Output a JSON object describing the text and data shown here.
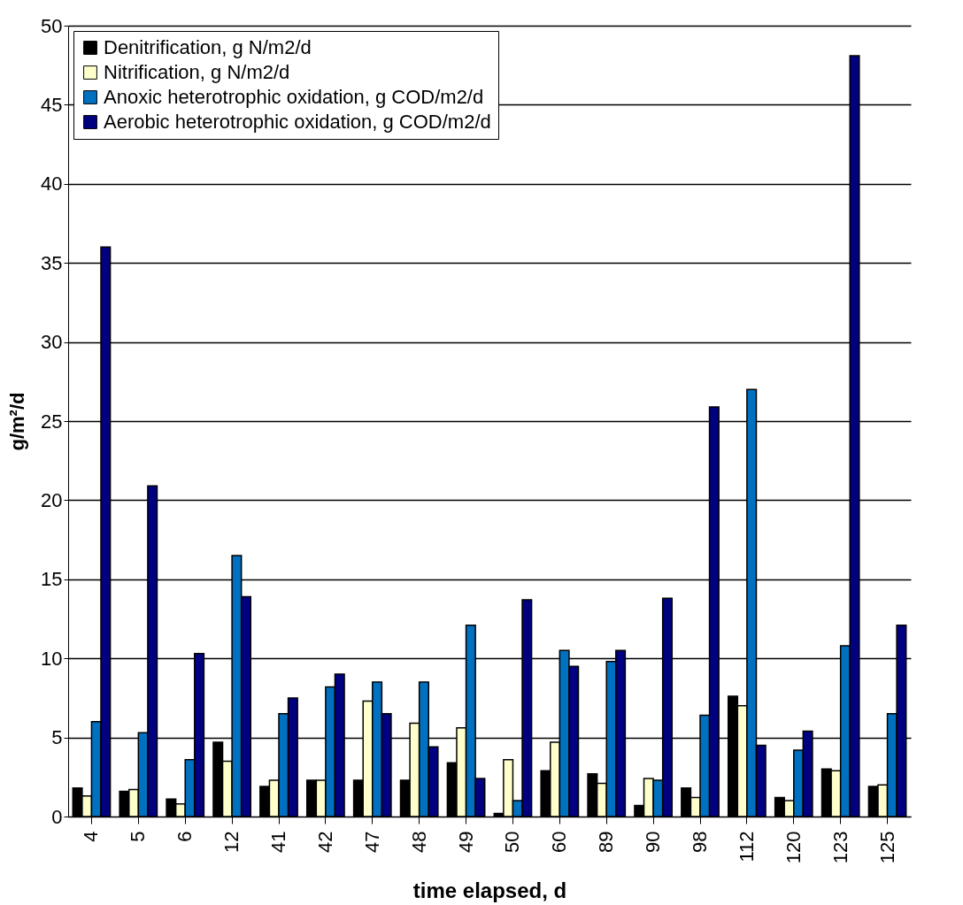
{
  "chart_data": {
    "type": "bar",
    "xlabel": "time elapsed, d",
    "ylabel": "g/m²/d",
    "categories": [
      "4",
      "5",
      "6",
      "12",
      "41",
      "42",
      "47",
      "48",
      "49",
      "50",
      "60",
      "89",
      "90",
      "98",
      "112",
      "120",
      "123",
      "125"
    ],
    "series": [
      {
        "name": "Denitrification, g N/m2/d",
        "color": "#000000",
        "values": [
          1.8,
          1.6,
          1.1,
          4.7,
          1.9,
          2.3,
          2.3,
          2.3,
          3.4,
          0.2,
          2.9,
          2.7,
          0.7,
          1.8,
          7.6,
          1.2,
          3.0,
          1.9
        ]
      },
      {
        "name": "Nitrification, g N/m2/d",
        "color": "#ffffcc",
        "values": [
          1.3,
          1.7,
          0.8,
          3.5,
          2.3,
          2.3,
          7.3,
          5.9,
          5.6,
          3.6,
          4.7,
          2.1,
          2.4,
          1.2,
          7.0,
          1.0,
          2.9,
          2.0
        ]
      },
      {
        "name": "Anoxic heterotrophic oxidation, g COD/m2/d",
        "color": "#0070c0",
        "values": [
          6.0,
          5.3,
          3.6,
          16.5,
          6.5,
          8.2,
          8.5,
          8.5,
          12.1,
          1.0,
          10.5,
          9.8,
          2.3,
          6.4,
          27.0,
          4.2,
          10.8,
          6.5
        ]
      },
      {
        "name": "Aerobic heterotrophic oxidation, g COD/m2/d",
        "color": "#000080",
        "values": [
          36.0,
          20.9,
          10.3,
          13.9,
          7.5,
          9.0,
          6.5,
          4.4,
          2.4,
          13.7,
          9.5,
          10.5,
          13.8,
          25.9,
          4.5,
          5.4,
          48.1,
          12.1
        ]
      }
    ],
    "ylim": [
      0,
      50
    ],
    "yticks": [
      0,
      5,
      10,
      15,
      20,
      25,
      30,
      35,
      40,
      45,
      50
    ],
    "grid": "y",
    "legend": "top left"
  }
}
